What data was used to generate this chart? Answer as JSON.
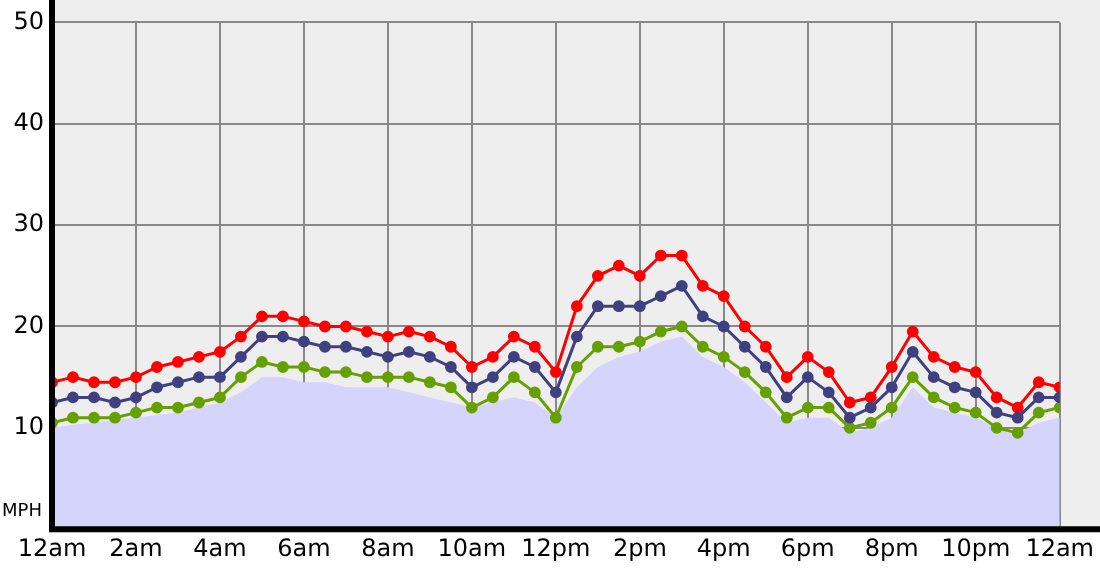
{
  "chart_data": {
    "type": "line",
    "ylabel": "MPH",
    "x": [
      "--01-01T00:00",
      "--01-01T00:30",
      "--01-01T01:00",
      "--01-01T01:30",
      "--01-01T02:00",
      "--01-01T02:30",
      "--01-01T03:00",
      "--01-01T03:30",
      "--01-01T04:00",
      "--01-01T04:30",
      "--01-01T05:00",
      "--01-01T05:30",
      "--01-01T06:00",
      "--01-01T06:30",
      "--01-01T07:00",
      "--01-01T07:30",
      "--01-01T08:00",
      "--01-01T08:30",
      "--01-01T09:00",
      "--01-01T09:30",
      "--01-01T10:00",
      "--01-01T10:30",
      "--01-01T11:00",
      "--01-01T11:30",
      "--01-01T12:00",
      "--01-01T12:30",
      "--01-01T13:00",
      "--01-01T13:30",
      "--01-01T14:00",
      "--01-01T14:30",
      "--01-01T15:00",
      "--01-01T15:30",
      "--01-01T16:00",
      "--01-01T16:30",
      "--01-01T17:00",
      "--01-01T17:30",
      "--01-01T18:00",
      "--01-01T18:30",
      "--01-01T19:00",
      "--01-01T19:30",
      "--01-01T20:00",
      "--01-01T20:30",
      "--01-01T21:00",
      "--01-01T21:30",
      "--01-01T22:00",
      "--01-01T22:30",
      "--01-01T23:00",
      "--01-01T23:30",
      "--01-02T00:00"
    ],
    "series": [
      {
        "type": "area",
        "color": "#d4d4fc",
        "marker": "none",
        "values": [
          10,
          10.3,
          10.5,
          10.8,
          11,
          11.3,
          11.5,
          12,
          12.5,
          13.5,
          15,
          15,
          14.5,
          14.5,
          14,
          14,
          14,
          13.5,
          13,
          12.5,
          12,
          12.5,
          13,
          12.5,
          11,
          14,
          16,
          17,
          17.5,
          18.5,
          19,
          17,
          16,
          14.5,
          12.5,
          10.5,
          11,
          11,
          9.5,
          10,
          11,
          14,
          12,
          11.5,
          11,
          10,
          9.5,
          10.5,
          11
        ]
      },
      {
        "color": "#ff0000",
        "values": [
          14.5,
          15,
          14.5,
          14.5,
          15,
          16,
          16.5,
          17,
          17.5,
          19,
          21,
          21,
          20.5,
          20,
          20,
          19.5,
          19,
          19.5,
          19,
          18,
          16,
          17,
          19,
          18,
          15.5,
          22,
          25,
          26,
          25,
          27,
          27,
          24,
          23,
          20,
          18,
          15,
          17,
          15.5,
          12.5,
          13,
          16,
          19.5,
          17,
          16,
          15.5,
          13,
          12,
          14.5,
          14
        ]
      },
      {
        "color": "#66a000",
        "values": [
          10.5,
          11,
          11,
          11,
          11.5,
          12,
          12,
          12.5,
          13,
          15,
          16.5,
          16,
          16,
          15.5,
          15.5,
          15,
          15,
          15,
          14.5,
          14,
          12,
          13,
          15,
          13.5,
          11,
          16,
          18,
          18,
          18.5,
          19.5,
          20,
          18,
          17,
          15.5,
          13.5,
          11,
          12,
          12,
          10,
          10.5,
          12,
          15,
          13,
          12,
          11.5,
          10,
          9.5,
          11.5,
          12
        ]
      },
      {
        "color": "#404080",
        "values": [
          12.5,
          13,
          13,
          12.5,
          13,
          14,
          14.5,
          15,
          15,
          17,
          19,
          19,
          18.5,
          18,
          18,
          17.5,
          17,
          17.5,
          17,
          16,
          14,
          15,
          17,
          16,
          13.5,
          19,
          22,
          22,
          22,
          23,
          24,
          21,
          20,
          18,
          16,
          13,
          15,
          13.5,
          11,
          12,
          14,
          17.5,
          15,
          14,
          13.5,
          11.5,
          11,
          13,
          13
        ]
      }
    ],
    "xlim": [
      "--01-01T00:00",
      "--01-02T00:00"
    ],
    "xticks": [
      {
        "value": "--01-01T00:00",
        "label": "12am"
      },
      {
        "value": "--01-01T02:00",
        "label": "2am"
      },
      {
        "value": "--01-01T04:00",
        "label": "4am"
      },
      {
        "value": "--01-01T06:00",
        "label": "6am"
      },
      {
        "value": "--01-01T08:00",
        "label": "8am"
      },
      {
        "value": "--01-01T10:00",
        "label": "10am"
      },
      {
        "value": "--01-01T12:00",
        "label": "12pm"
      },
      {
        "value": "--01-01T14:00",
        "label": "2pm"
      },
      {
        "value": "--01-01T16:00",
        "label": "4pm"
      },
      {
        "value": "--01-01T18:00",
        "label": "6pm"
      },
      {
        "value": "--01-01T20:00",
        "label": "8pm"
      },
      {
        "value": "--01-01T22:00",
        "label": "10pm"
      },
      {
        "value": "--01-02T00:00",
        "label": "12am"
      }
    ],
    "ylim": [
      0,
      50
    ],
    "yticks": [
      10,
      20,
      30,
      40,
      50
    ],
    "grid": true,
    "legend": false,
    "marker": "circle",
    "line_style": "solid"
  }
}
